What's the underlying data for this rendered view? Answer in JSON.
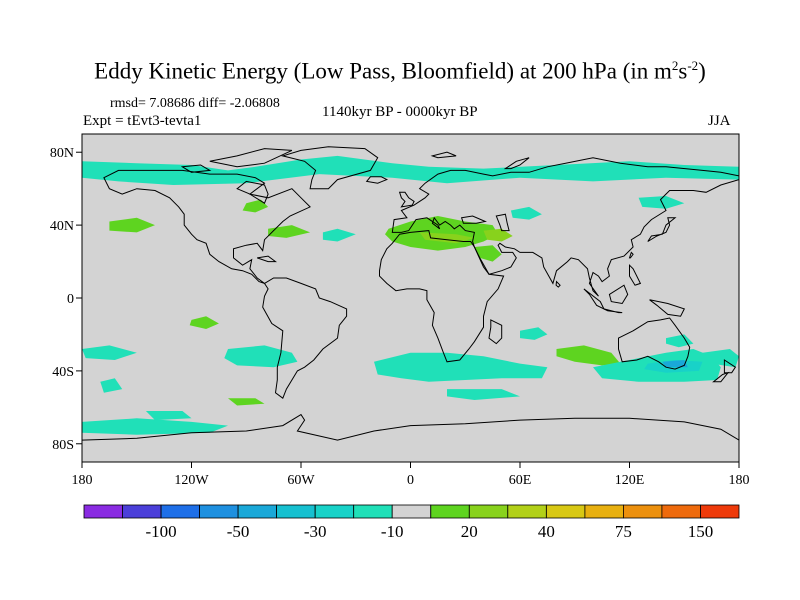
{
  "title": {
    "main": "Eddy Kinetic Energy (Low Pass, Bloomfield) at 200 hPa (in m",
    "sup1": "2",
    "mid": "s",
    "sup2": "-2",
    "end": ")"
  },
  "stats": "rmsd= 7.08686 diff= -2.06808",
  "expt": "Expt = tEvt3-tevta1",
  "period": "1140kyr BP - 0000kyr BP",
  "season": "JJA",
  "axes": {
    "lat_labels": [
      "80N",
      "40N",
      "0",
      "40S",
      "80S"
    ],
    "lat_values": [
      80,
      40,
      0,
      -40,
      -80
    ],
    "lon_labels": [
      "180",
      "120W",
      "60W",
      "0",
      "60E",
      "120E",
      "180"
    ],
    "lon_values": [
      -180,
      -120,
      -60,
      0,
      60,
      120,
      180
    ]
  },
  "colorbar": {
    "labels": [
      "-100",
      "-50",
      "-30",
      "-10",
      "20",
      "40",
      "75",
      "150"
    ],
    "colors": [
      "#8a2be2",
      "#4b3fd9",
      "#1e6fe8",
      "#1e90e0",
      "#1aa8d8",
      "#16c0d0",
      "#18d2c8",
      "#20e0b8",
      "#d3d3d3",
      "#5ed420",
      "#88d21c",
      "#b2d018",
      "#d8c814",
      "#e8b010",
      "#ec900e",
      "#ee6a0c",
      "#ee3a0a"
    ]
  },
  "colors": {
    "ocean_bg": "#d3d3d3",
    "pos_light": "#5ed420",
    "pos_mid": "#88d21c",
    "neg_light": "#20e0b8",
    "neg_mid": "#18d2c8",
    "neg_strong": "#1aa8d8"
  }
}
